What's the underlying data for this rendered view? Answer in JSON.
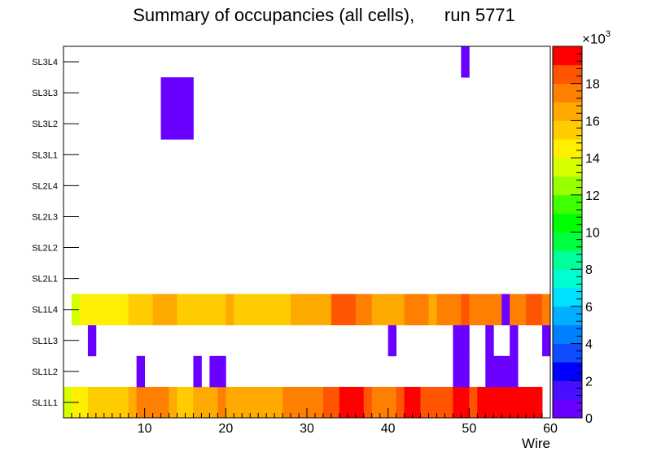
{
  "chart_data": {
    "type": "heatmap",
    "title": "Summary of occupancies (all cells),",
    "run_label": "run 5771",
    "xlabel": "Wire",
    "ylabel": "",
    "x_range": [
      0,
      60
    ],
    "x_ticks": [
      "10",
      "20",
      "30",
      "40",
      "50",
      "60"
    ],
    "y_categories": [
      "SL1L1",
      "SL1L2",
      "SL1L3",
      "SL1L4",
      "SL2L1",
      "SL2L2",
      "SL2L3",
      "SL2L4",
      "SL3L1",
      "SL3L2",
      "SL3L3",
      "SL3L4"
    ],
    "z_range": [
      0,
      20000
    ],
    "z_scale_label": "×10",
    "z_scale_exponent": "3",
    "z_ticks": [
      "0",
      "2",
      "4",
      "6",
      "8",
      "10",
      "12",
      "14",
      "16",
      "18"
    ],
    "palette": [
      "#6a00ff",
      "#4610ff",
      "#0000ff",
      "#0f4cff",
      "#0080ff",
      "#00b0ff",
      "#00e0ff",
      "#00ffd0",
      "#00ff9a",
      "#00ff40",
      "#00ff00",
      "#40ff00",
      "#9aff00",
      "#d8ff00",
      "#ffef00",
      "#ffcc00",
      "#ffaa00",
      "#ff8000",
      "#ff5500",
      "#ff0000"
    ],
    "cells": {
      "SL1L1": [
        13800,
        14500,
        14500,
        15400,
        15400,
        15400,
        15400,
        15400,
        16800,
        17800,
        17800,
        17800,
        17800,
        16200,
        15400,
        15400,
        16800,
        16800,
        16800,
        17800,
        16800,
        16800,
        16800,
        16800,
        16800,
        16800,
        16800,
        17800,
        17800,
        17800,
        17800,
        17800,
        18600,
        18600,
        19800,
        19800,
        19800,
        18600,
        17800,
        17800,
        17800,
        18600,
        19800,
        19800,
        18600,
        18600,
        18600,
        18600,
        19800,
        19800,
        18600,
        19800,
        19800,
        19800,
        19800,
        19800,
        19800,
        19800,
        19800,
        0
      ],
      "SL1L2": [
        0,
        0,
        0,
        0,
        0,
        0,
        0,
        0,
        0,
        700,
        0,
        0,
        0,
        0,
        0,
        0,
        700,
        0,
        700,
        700,
        0,
        0,
        0,
        0,
        0,
        0,
        0,
        0,
        0,
        0,
        0,
        0,
        0,
        0,
        0,
        0,
        0,
        0,
        0,
        0,
        0,
        0,
        0,
        0,
        0,
        0,
        0,
        0,
        700,
        700,
        0,
        0,
        700,
        700,
        700,
        700,
        0,
        0,
        0,
        0
      ],
      "SL1L3": [
        0,
        0,
        0,
        700,
        0,
        0,
        0,
        0,
        0,
        0,
        0,
        0,
        0,
        0,
        0,
        0,
        0,
        0,
        0,
        0,
        0,
        0,
        0,
        0,
        0,
        0,
        0,
        0,
        0,
        0,
        0,
        0,
        0,
        0,
        0,
        0,
        0,
        0,
        0,
        0,
        700,
        0,
        0,
        0,
        0,
        0,
        0,
        0,
        700,
        700,
        0,
        0,
        700,
        0,
        0,
        700,
        0,
        0,
        0,
        700
      ],
      "SL1L4": [
        0,
        13800,
        14500,
        14500,
        14500,
        14500,
        14500,
        14500,
        15400,
        15400,
        15400,
        16800,
        16800,
        16800,
        15400,
        15000,
        15400,
        15400,
        15400,
        15400,
        16800,
        15400,
        15400,
        15400,
        15400,
        15400,
        15000,
        15000,
        16800,
        16800,
        16800,
        16800,
        16800,
        18600,
        18600,
        18600,
        17800,
        17800,
        16800,
        16800,
        16800,
        16800,
        17800,
        17800,
        17800,
        16800,
        17800,
        17800,
        17800,
        18600,
        17800,
        17800,
        17800,
        17800,
        700,
        17800,
        17800,
        18600,
        18600,
        17800
      ],
      "SL2L1": [],
      "SL2L2": [],
      "SL2L3": [],
      "SL2L4": [],
      "SL3L1": [],
      "SL3L2": [
        0,
        0,
        0,
        0,
        0,
        0,
        0,
        0,
        0,
        0,
        0,
        0,
        700,
        700,
        700,
        700
      ],
      "SL3L3": [
        0,
        0,
        0,
        0,
        0,
        0,
        0,
        0,
        0,
        0,
        0,
        0,
        700,
        700,
        700,
        700
      ],
      "SL3L4": [
        0,
        0,
        0,
        0,
        0,
        0,
        0,
        0,
        0,
        0,
        0,
        0,
        0,
        0,
        0,
        0,
        0,
        0,
        0,
        0,
        0,
        0,
        0,
        0,
        0,
        0,
        0,
        0,
        0,
        0,
        0,
        0,
        0,
        0,
        0,
        0,
        0,
        0,
        0,
        0,
        0,
        0,
        0,
        0,
        0,
        0,
        0,
        0,
        0,
        700
      ]
    }
  }
}
